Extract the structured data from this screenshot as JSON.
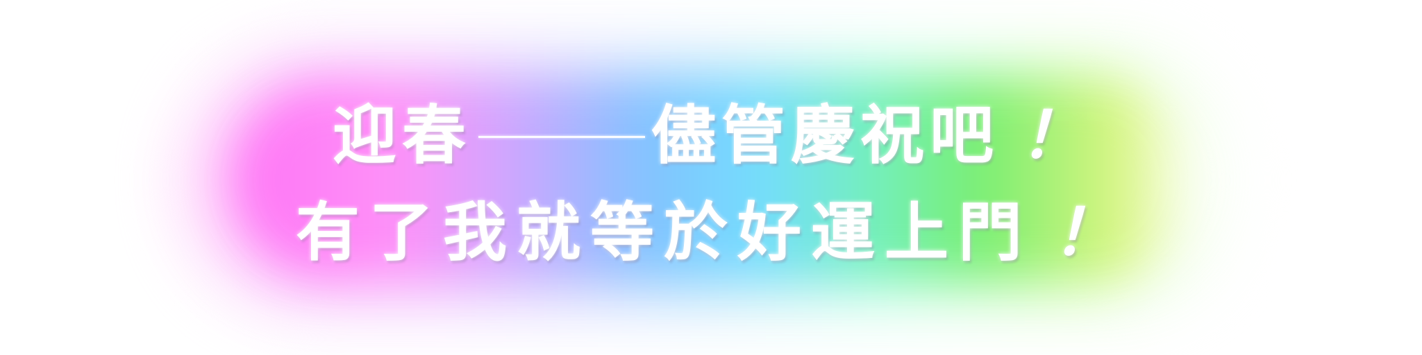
{
  "banner": {
    "line1": {
      "before": "迎春",
      "dash": "——",
      "after": "儘管慶祝吧",
      "exclaim": "！"
    },
    "line2": {
      "text": "有了我就等於好運上門",
      "exclaim": "！"
    }
  },
  "colors": {
    "text": "#ffffff",
    "glow_gradient": [
      "#ff6ef5",
      "#c9a6ff",
      "#7fc1ff",
      "#6ff0b8",
      "#74ee6c",
      "#d8f57a"
    ],
    "background": "#ffffff"
  }
}
